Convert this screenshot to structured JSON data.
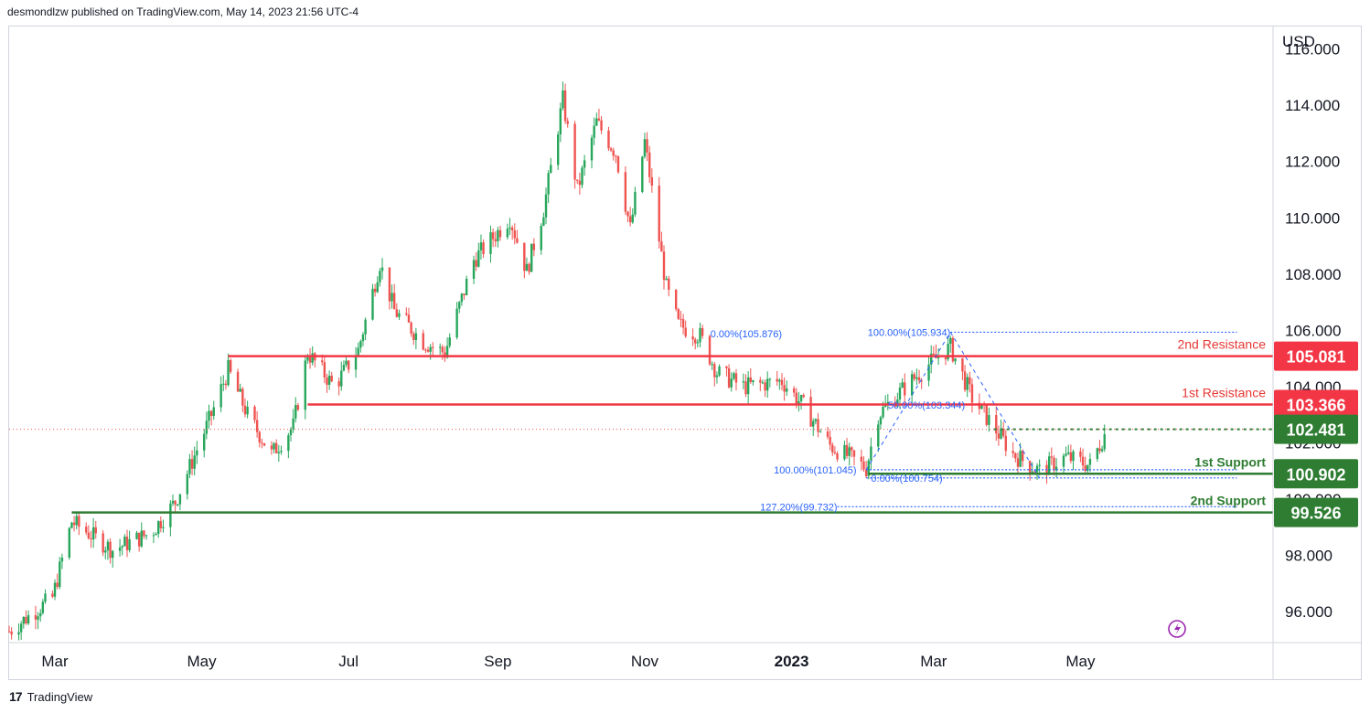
{
  "header": {
    "published": "desmondlzw published on TradingView.com, May 14, 2023 21:56 UTC-4"
  },
  "footer": {
    "logo": "17",
    "brand": "TradingView"
  },
  "colors": {
    "up": "#26a65b",
    "down": "#ef5350",
    "resistance": "#f23645",
    "support": "#2e7d32",
    "fib": "#2962ff",
    "last": "#2e7d32"
  },
  "chart_data": {
    "type": "candlestick",
    "currency": "USD",
    "y_ticks": [
      "116.000",
      "114.000",
      "112.000",
      "110.000",
      "108.000",
      "106.000",
      "104.000",
      "102.000",
      "100.000",
      "98.000",
      "96.000"
    ],
    "ylim": [
      94.9,
      116.8
    ],
    "x_ticks": [
      "Mar",
      "May",
      "Jul",
      "Sep",
      "Nov",
      "2023",
      "Mar",
      "May"
    ],
    "x_range": [
      "2022-02-10",
      "2023-07-20"
    ],
    "x_tick_dates": [
      "2022-03-01",
      "2022-05-01",
      "2022-07-01",
      "2022-09-01",
      "2022-11-01",
      "2023-01-01",
      "2023-03-01",
      "2023-05-01"
    ],
    "anchors": [
      [
        "2022-02-10",
        95.3
      ],
      [
        "2022-02-28",
        96.5
      ],
      [
        "2022-03-08",
        99.2
      ],
      [
        "2022-03-25",
        98.2
      ],
      [
        "2022-04-10",
        98.8
      ],
      [
        "2022-04-20",
        99.9
      ],
      [
        "2022-05-05",
        103.0
      ],
      [
        "2022-05-12",
        104.6
      ],
      [
        "2022-05-20",
        103.0
      ],
      [
        "2022-05-30",
        101.6
      ],
      [
        "2022-06-08",
        102.6
      ],
      [
        "2022-06-14",
        105.2
      ],
      [
        "2022-06-25",
        104.0
      ],
      [
        "2022-07-05",
        105.3
      ],
      [
        "2022-07-14",
        108.4
      ],
      [
        "2022-07-20",
        106.7
      ],
      [
        "2022-08-01",
        105.6
      ],
      [
        "2022-08-10",
        105.2
      ],
      [
        "2022-08-22",
        108.5
      ],
      [
        "2022-09-06",
        110.0
      ],
      [
        "2022-09-13",
        108.1
      ],
      [
        "2022-09-20",
        110.3
      ],
      [
        "2022-09-28",
        114.2
      ],
      [
        "2022-10-04",
        111.0
      ],
      [
        "2022-10-12",
        113.4
      ],
      [
        "2022-10-20",
        112.3
      ],
      [
        "2022-10-26",
        109.6
      ],
      [
        "2022-11-01",
        112.7
      ],
      [
        "2022-11-10",
        107.5
      ],
      [
        "2022-11-15",
        106.2
      ],
      [
        "2022-11-24",
        105.8
      ],
      [
        "2022-12-01",
        104.5
      ],
      [
        "2022-12-12",
        104.0
      ],
      [
        "2022-12-28",
        104.2
      ],
      [
        "2023-01-06",
        103.3
      ],
      [
        "2023-01-17",
        101.9
      ],
      [
        "2023-01-25",
        101.5
      ],
      [
        "2023-02-01",
        101.1
      ],
      [
        "2023-02-06",
        103.0
      ],
      [
        "2023-02-15",
        103.8
      ],
      [
        "2023-02-27",
        104.8
      ],
      [
        "2023-03-08",
        105.4
      ],
      [
        "2023-03-17",
        103.6
      ],
      [
        "2023-03-24",
        102.8
      ],
      [
        "2023-04-03",
        101.6
      ],
      [
        "2023-04-14",
        101.0
      ],
      [
        "2023-04-25",
        101.5
      ],
      [
        "2023-05-05",
        101.2
      ],
      [
        "2023-05-12",
        102.48
      ]
    ],
    "levels": [
      {
        "label": "2nd Resistance",
        "value": 105.081,
        "value_text": "105.081",
        "kind": "resistance",
        "from": "2022-05-12"
      },
      {
        "label": "1st Resistance",
        "value": 103.366,
        "value_text": "103.366",
        "kind": "resistance",
        "from": "2022-06-14"
      },
      {
        "label": "1st Support",
        "value": 100.902,
        "value_text": "100.902",
        "kind": "support",
        "from": "2023-02-02"
      },
      {
        "label": "2nd Support",
        "value": 99.526,
        "value_text": "99.526",
        "kind": "support",
        "from": "2022-03-08"
      }
    ],
    "last_price": {
      "value": 102.481,
      "value_text": "102.481"
    },
    "fib_labels": [
      {
        "text": "0.00%(105.876)",
        "date": "2022-12-28",
        "value": 105.876,
        "anchor": "end"
      },
      {
        "text": "100.00%(105.934)",
        "date": "2023-03-08",
        "value": 105.934,
        "anchor": "end"
      },
      {
        "text": "50.00%(103.344)",
        "date": "2023-02-10",
        "value": 103.344,
        "anchor": "start"
      },
      {
        "text": "100.00%(101.045)",
        "date": "2023-01-28",
        "value": 101.045,
        "anchor": "end"
      },
      {
        "text": "0.00%(100.754)",
        "date": "2023-02-03",
        "value": 100.754,
        "anchor": "start"
      },
      {
        "text": "127.20%(99.732)",
        "date": "2023-01-20",
        "value": 99.732,
        "anchor": "end"
      }
    ],
    "fib_lines": [
      {
        "value": 105.934,
        "from": "2023-03-08",
        "to": "2023-07-05"
      },
      {
        "value": 101.045,
        "from": "2023-02-01",
        "to": "2023-07-05"
      },
      {
        "value": 100.754,
        "from": "2023-02-01",
        "to": "2023-07-05"
      },
      {
        "value": 99.732,
        "from": "2023-01-20",
        "to": "2023-07-05"
      }
    ]
  }
}
